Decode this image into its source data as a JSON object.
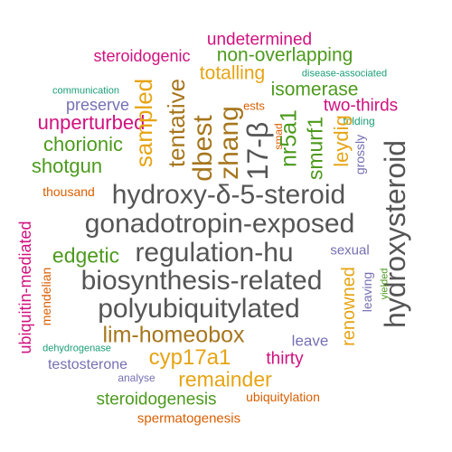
{
  "words": {
    "undetermined": "undetermined",
    "steroidogenic": "steroidogenic",
    "non_overlapping": "non-overlapping",
    "totalling": "totalling",
    "disease_associated": "disease-associated",
    "communication": "communication",
    "isomerase": "isomerase",
    "preserve": "preserve",
    "ests": "ests",
    "two_thirds": "two-thirds",
    "folding": "folding",
    "unperturbed": "unperturbed",
    "chorionic": "chorionic",
    "shotgun": "shotgun",
    "sampled": "sampled",
    "tentative": "tentative",
    "dbest": "dbest",
    "zhang": "zhang",
    "h17_beta": "17-β",
    "smad": "smad",
    "nr5a1": "nr5a1",
    "smurf1": "smurf1",
    "leydig": "leydig",
    "grossly": "grossly",
    "hydroxysteroid": "hydroxysteroid",
    "thousand": "thousand",
    "hydroxy_delta": "hydroxy-δ-5-steroid",
    "gonadotropin": "gonadotropin-exposed",
    "ubiquitin_mediated": "ubiquitin-mediated",
    "edgetic": "edgetic",
    "regulation_hu": "regulation-hu",
    "sexual": "sexual",
    "mendelian": "mendelian",
    "biosynthesis": "biosynthesis-related",
    "renowned": "renowned",
    "leaving": "leaving",
    "yielded": "yielded",
    "polyubiquitylated": "polyubiquitylated",
    "lim_homeobox": "lim-homeobox",
    "leave": "leave",
    "dehydrogenase": "dehydrogenase",
    "cyp17a1": "cyp17a1",
    "testosterone": "testosterone",
    "thirty": "thirty",
    "analyse": "analyse",
    "remainder": "remainder",
    "steroidogenesis": "steroidogenesis",
    "ubiquitylation": "ubiquitylation",
    "spermatogenesis": "spermatogenesis"
  }
}
